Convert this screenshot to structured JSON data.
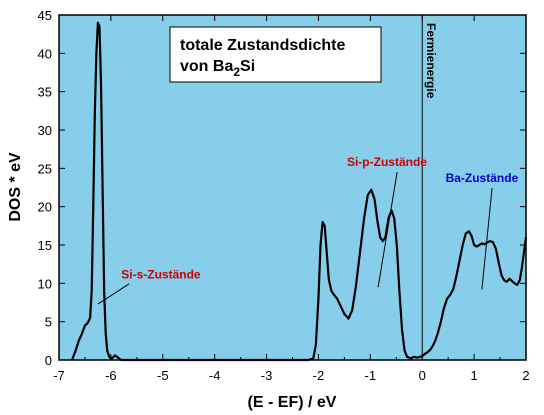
{
  "chart_data": {
    "type": "line",
    "title_line1": "totale Zustandsdichte",
    "title_line2_prefix": "von Ba",
    "title_line2_sub": "2",
    "title_line2_suffix": "Si",
    "xlabel": "(E - EF) / eV",
    "ylabel": "DOS * eV",
    "xlim": [
      -7,
      2
    ],
    "ylim": [
      0,
      45
    ],
    "xticks": [
      -7,
      -6,
      -5,
      -4,
      -3,
      -2,
      -1,
      0,
      1,
      2
    ],
    "yticks": [
      0,
      5,
      10,
      15,
      20,
      25,
      30,
      35,
      40,
      45
    ],
    "grid": false,
    "fermi_level": 0,
    "fermi_label": "Fermienergie",
    "annotations": [
      {
        "label": "Si-s-Zustände",
        "color": "#cc0000",
        "text_x": -5.8,
        "text_y": 10.6,
        "arrow_x": -6.25,
        "arrow_y": 7.3
      },
      {
        "label": "Si-p-Zustände",
        "color": "#cc0000",
        "text_x": -1.45,
        "text_y": 25.3,
        "arrow_x": -0.85,
        "arrow_y": 9.5
      },
      {
        "label": "Ba-Zustände",
        "color": "#0000cc",
        "text_x": 0.45,
        "text_y": 23.2,
        "arrow_x": 1.15,
        "arrow_y": 9.2
      }
    ],
    "colors": {
      "background": "#87ceeb",
      "line": "#000000",
      "frame": "#000000"
    },
    "series": [
      {
        "x": [
          -6.75,
          -6.68,
          -6.62,
          -6.56,
          -6.5,
          -6.45,
          -6.4,
          -6.37,
          -6.34,
          -6.31,
          -6.28,
          -6.25,
          -6.22,
          -6.19,
          -6.17,
          -6.15,
          -6.13,
          -6.1,
          -6.07,
          -6.03,
          -5.99,
          -5.95,
          -5.92,
          -5.88,
          -5.84,
          -5.8,
          -5.5,
          -5.0,
          -4.5,
          -4.0,
          -3.5,
          -3.0,
          -2.5,
          -2.2,
          -2.1,
          -2.05,
          -2.0,
          -1.96,
          -1.92,
          -1.88,
          -1.84,
          -1.8,
          -1.75,
          -1.7,
          -1.64,
          -1.57,
          -1.5,
          -1.42,
          -1.35,
          -1.28,
          -1.2,
          -1.12,
          -1.05,
          -0.98,
          -0.92,
          -0.86,
          -0.81,
          -0.76,
          -0.71,
          -0.65,
          -0.59,
          -0.54,
          -0.49,
          -0.44,
          -0.39,
          -0.34,
          -0.29,
          -0.25,
          -0.21,
          -0.17,
          -0.14,
          -0.1,
          -0.05,
          0.0,
          0.05,
          0.1,
          0.15,
          0.2,
          0.25,
          0.3,
          0.36,
          0.42,
          0.48,
          0.54,
          0.6,
          0.66,
          0.72,
          0.78,
          0.84,
          0.9,
          0.95,
          1.0,
          1.05,
          1.1,
          1.15,
          1.2,
          1.25,
          1.3,
          1.36,
          1.42,
          1.48,
          1.53,
          1.58,
          1.63,
          1.68,
          1.73,
          1.78,
          1.83,
          1.88,
          1.92,
          1.96,
          2.0
        ],
        "y": [
          0.0,
          1.2,
          2.5,
          3.4,
          4.5,
          4.8,
          5.5,
          9.0,
          20.0,
          32.0,
          40.0,
          44.0,
          43.5,
          36.0,
          27.0,
          18.0,
          9.0,
          3.5,
          1.2,
          0.4,
          0.2,
          0.4,
          0.6,
          0.4,
          0.2,
          0.0,
          0.0,
          0.0,
          0.0,
          0.0,
          0.0,
          0.0,
          0.0,
          0.0,
          0.2,
          2.0,
          8.0,
          15.0,
          18.0,
          17.5,
          14.0,
          10.5,
          9.0,
          8.5,
          8.0,
          7.0,
          6.0,
          5.4,
          6.5,
          9.5,
          14.0,
          18.5,
          21.5,
          22.2,
          21.0,
          18.0,
          16.0,
          15.5,
          16.0,
          18.5,
          19.5,
          18.5,
          15.0,
          9.0,
          4.0,
          1.2,
          0.4,
          0.3,
          0.2,
          0.4,
          0.4,
          0.3,
          0.4,
          0.5,
          0.8,
          1.0,
          1.3,
          1.8,
          2.5,
          3.5,
          5.0,
          6.8,
          8.0,
          8.5,
          9.3,
          11.0,
          13.0,
          15.0,
          16.5,
          16.8,
          16.2,
          15.0,
          14.8,
          15.0,
          15.2,
          15.1,
          15.3,
          15.5,
          15.4,
          14.5,
          12.5,
          11.0,
          10.4,
          10.2,
          10.6,
          10.3,
          10.0,
          9.8,
          10.4,
          12.0,
          14.0,
          16.0
        ]
      }
    ]
  }
}
